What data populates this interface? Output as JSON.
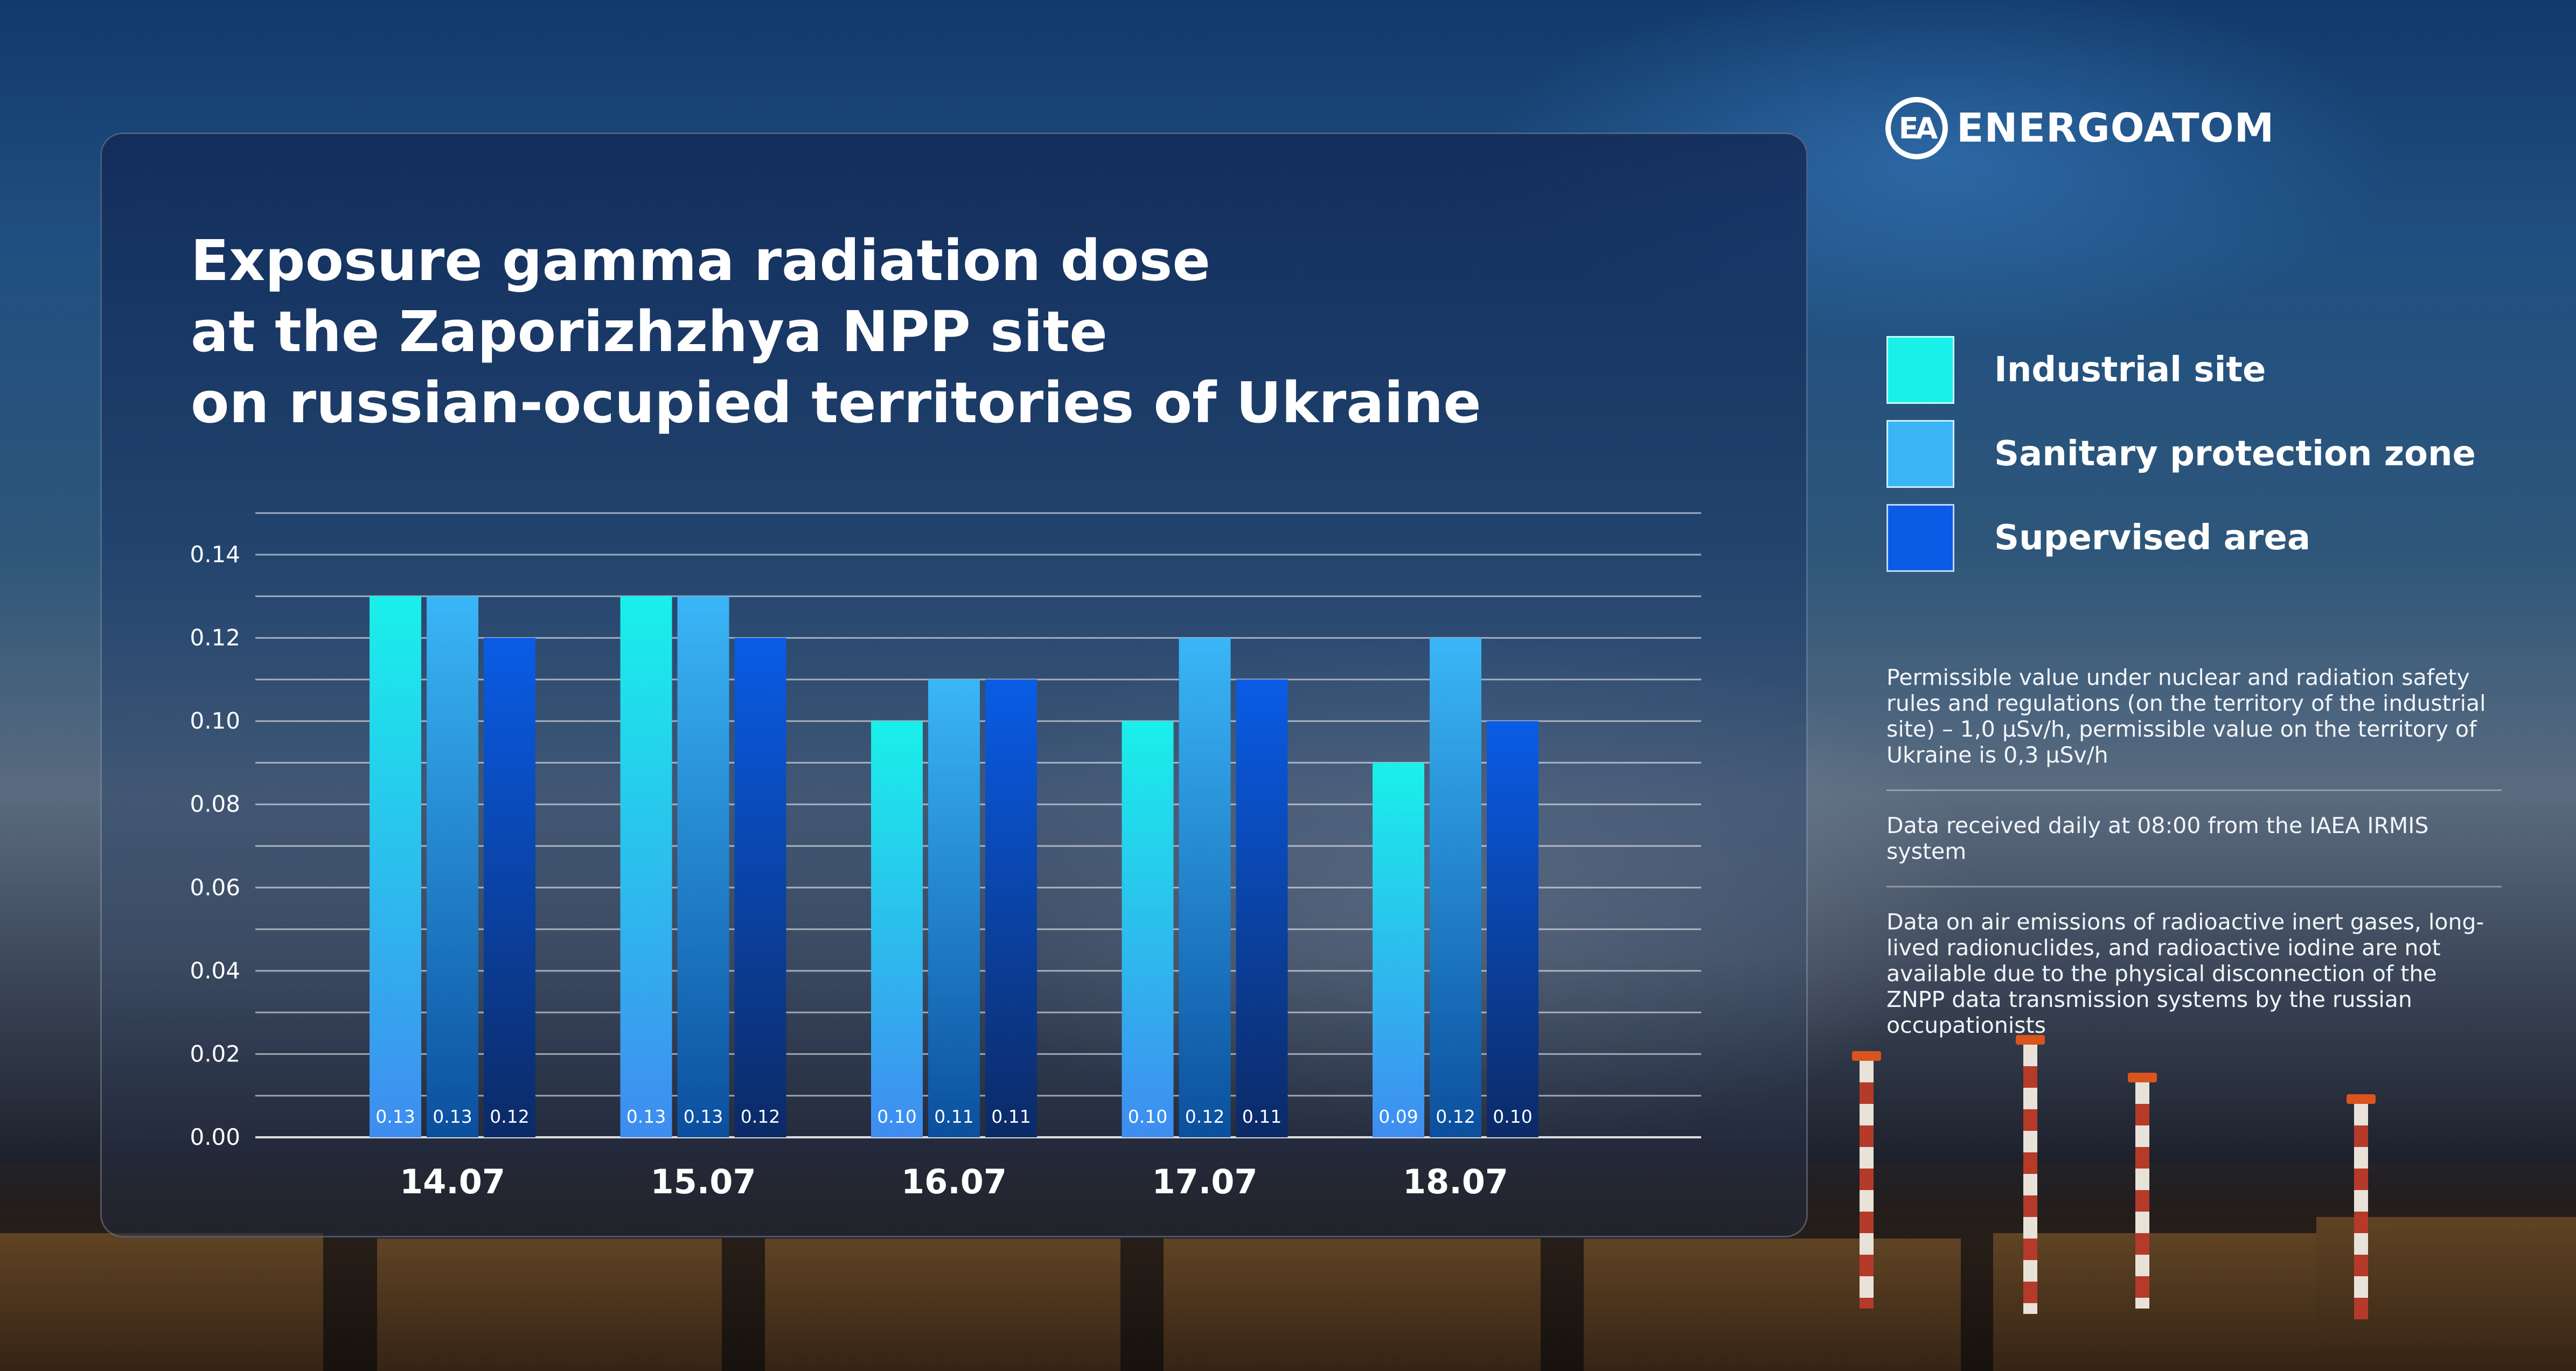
{
  "brand": {
    "logo_mark": "EA",
    "name": "ENERGOATOM"
  },
  "chart_data": {
    "type": "bar",
    "title_lines": [
      "Exposure gamma radiation dose",
      "at the Zaporizhzhya NPP site",
      "on russian-ocupied territories of Ukraine"
    ],
    "xlabel": "",
    "ylabel": "",
    "categories": [
      "14.07",
      "15.07",
      "16.07",
      "17.07",
      "18.07"
    ],
    "ylim": [
      0,
      0.14
    ],
    "yticks": [
      "0.00",
      "0.02",
      "0.04",
      "0.06",
      "0.08",
      "0.10",
      "0.12",
      "0.14"
    ],
    "gridlines": "horizontal every 0.01",
    "legend_position": "right",
    "series": [
      {
        "name": "Industrial site",
        "color": "#19f0ea",
        "color_bottom": "#3f8cf0",
        "values": [
          0.13,
          0.13,
          0.1,
          0.1,
          0.09
        ],
        "labels": [
          "0.13",
          "0.13",
          "0.10",
          "0.10",
          "0.09"
        ]
      },
      {
        "name": "Sanitary protection zone",
        "color": "#3ab6f7",
        "color_bottom": "#0b4f9e",
        "values": [
          0.13,
          0.13,
          0.11,
          0.12,
          0.12
        ],
        "labels": [
          "0.13",
          "0.13",
          "0.11",
          "0.12",
          "0.12"
        ]
      },
      {
        "name": "Supervised area",
        "color": "#0a5ce6",
        "color_bottom": "#0b2a66",
        "values": [
          0.12,
          0.12,
          0.11,
          0.11,
          0.1
        ],
        "labels": [
          "0.12",
          "0.12",
          "0.11",
          "0.11",
          "0.10"
        ]
      }
    ]
  },
  "notes": [
    "Permissible value under nuclear and radiation safety rules and regulations (on the territory of the industrial site) – 1,0 µSv/h, permissible value on the territory of Ukraine is 0,3 µSv/h",
    "Data received daily at 08:00 from the IAEA IRMIS system",
    "Data on air emissions of radioactive inert gases, long-lived radionuclides, and radioactive iodine are not available due to the physical disconnection of the ZNPP data transmission systems by the russian occupationists"
  ]
}
